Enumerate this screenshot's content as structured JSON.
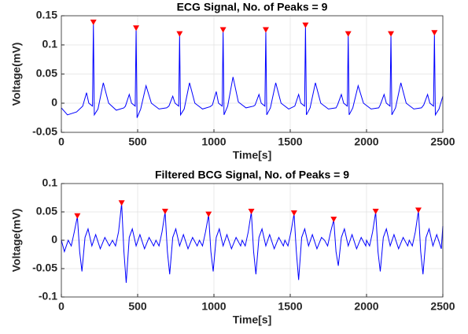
{
  "chart_data": [
    {
      "type": "line",
      "title": "ECG Signal, No. of Peaks = 9",
      "xlabel": "Time[s]",
      "ylabel": "Voltage(mV)",
      "x": [
        0,
        40,
        100,
        140,
        165,
        180,
        204,
        210,
        216,
        240,
        275,
        310,
        360,
        410,
        420,
        445,
        460,
        484,
        490,
        496,
        520,
        555,
        590,
        640,
        690,
        705,
        730,
        745,
        769,
        775,
        781,
        805,
        840,
        875,
        925,
        975,
        990,
        1015,
        1030,
        1054,
        1060,
        1066,
        1090,
        1125,
        1160,
        1210,
        1260,
        1270,
        1295,
        1310,
        1334,
        1340,
        1346,
        1370,
        1405,
        1440,
        1490,
        1530,
        1555,
        1570,
        1594,
        1600,
        1606,
        1630,
        1665,
        1700,
        1750,
        1800,
        1810,
        1835,
        1850,
        1874,
        1880,
        1886,
        1910,
        1945,
        1980,
        2030,
        2080,
        2090,
        2115,
        2130,
        2154,
        2160,
        2166,
        2190,
        2225,
        2260,
        2310,
        2360,
        2375,
        2400,
        2415,
        2439,
        2445,
        2451,
        2475,
        2500
      ],
      "series": [
        {
          "color": "#0000ff",
          "values": [
            -0.008,
            -0.02,
            -0.015,
            -0.005,
            0.018,
            0.0,
            -0.005,
            0.138,
            -0.02,
            -0.01,
            0.035,
            0.0,
            -0.012,
            -0.008,
            -0.005,
            0.015,
            0.0,
            -0.005,
            0.128,
            -0.025,
            -0.01,
            0.03,
            0.0,
            -0.01,
            -0.008,
            -0.005,
            0.012,
            0.0,
            -0.005,
            0.118,
            -0.02,
            -0.01,
            0.035,
            0.0,
            -0.01,
            -0.006,
            -0.003,
            0.02,
            0.0,
            -0.005,
            0.125,
            -0.02,
            -0.005,
            0.045,
            0.002,
            -0.008,
            -0.005,
            -0.003,
            0.015,
            0.0,
            -0.005,
            0.125,
            -0.02,
            -0.008,
            0.035,
            0.0,
            -0.01,
            -0.005,
            0.015,
            0.0,
            -0.005,
            0.133,
            -0.02,
            -0.008,
            0.035,
            0.0,
            -0.01,
            -0.008,
            -0.003,
            0.015,
            0.0,
            -0.005,
            0.118,
            -0.02,
            -0.008,
            0.03,
            0.0,
            -0.01,
            -0.008,
            -0.003,
            0.015,
            0.0,
            -0.005,
            0.118,
            -0.02,
            -0.008,
            0.035,
            0.0,
            -0.01,
            -0.008,
            -0.003,
            0.015,
            0.0,
            -0.005,
            0.12,
            -0.02,
            -0.01,
            0.012
          ]
        }
      ],
      "peaks": {
        "color": "#ff0000",
        "x": [
          210,
          490,
          775,
          1060,
          1340,
          1600,
          1880,
          2160,
          2445
        ],
        "values": [
          0.138,
          0.128,
          0.118,
          0.125,
          0.125,
          0.133,
          0.118,
          0.118,
          0.12
        ]
      },
      "xlim": [
        0,
        2500
      ],
      "ylim": [
        -0.05,
        0.15
      ],
      "xticks": [
        0,
        500,
        1000,
        1500,
        2000,
        2500
      ],
      "yticks": [
        -0.05,
        0,
        0.05,
        0.1,
        0.15
      ],
      "grid": true
    },
    {
      "type": "line",
      "title": "Filtered BCG Signal, No. of Peaks = 9",
      "xlabel": "Time[s]",
      "ylabel": "Voltage(mV)",
      "x": [
        0,
        20,
        45,
        65,
        85,
        105,
        120,
        135,
        155,
        175,
        200,
        225,
        255,
        285,
        315,
        335,
        355,
        375,
        395,
        410,
        425,
        445,
        465,
        490,
        515,
        545,
        575,
        605,
        620,
        640,
        660,
        680,
        695,
        710,
        730,
        750,
        775,
        800,
        830,
        860,
        890,
        905,
        925,
        945,
        965,
        980,
        995,
        1015,
        1035,
        1060,
        1085,
        1115,
        1145,
        1175,
        1185,
        1205,
        1225,
        1245,
        1260,
        1275,
        1295,
        1315,
        1340,
        1365,
        1395,
        1425,
        1455,
        1465,
        1485,
        1505,
        1525,
        1540,
        1555,
        1575,
        1595,
        1620,
        1645,
        1675,
        1705,
        1725,
        1745,
        1765,
        1785,
        1800,
        1815,
        1835,
        1855,
        1880,
        1905,
        1935,
        1965,
        1995,
        2000,
        2020,
        2040,
        2060,
        2075,
        2090,
        2110,
        2130,
        2155,
        2180,
        2210,
        2240,
        2270,
        2280,
        2300,
        2320,
        2340,
        2355,
        2370,
        2390,
        2410,
        2435,
        2460,
        2490,
        2500
      ],
      "series": [
        {
          "color": "#0000ff",
          "values": [
            0.0,
            -0.02,
            0.0,
            -0.01,
            0.015,
            0.042,
            -0.02,
            -0.055,
            0.005,
            0.02,
            -0.01,
            0.01,
            -0.015,
            0.005,
            -0.01,
            0.0,
            -0.01,
            0.015,
            0.065,
            -0.02,
            -0.075,
            0.005,
            0.02,
            -0.01,
            0.01,
            -0.015,
            0.005,
            -0.01,
            0.0,
            -0.01,
            0.015,
            0.05,
            -0.02,
            -0.06,
            0.005,
            0.02,
            -0.01,
            0.01,
            -0.015,
            0.005,
            -0.01,
            0.0,
            -0.01,
            0.015,
            0.045,
            -0.02,
            -0.055,
            0.005,
            0.02,
            -0.01,
            0.01,
            -0.015,
            0.005,
            -0.01,
            0.0,
            -0.01,
            0.015,
            0.05,
            -0.02,
            -0.06,
            0.005,
            0.02,
            -0.01,
            0.01,
            -0.015,
            0.005,
            -0.01,
            0.0,
            -0.01,
            0.015,
            0.047,
            -0.02,
            -0.07,
            0.005,
            0.02,
            -0.01,
            0.01,
            -0.015,
            0.005,
            0.0,
            -0.01,
            0.015,
            0.036,
            -0.02,
            -0.045,
            0.005,
            0.02,
            -0.01,
            0.01,
            -0.015,
            0.005,
            -0.01,
            0.0,
            -0.01,
            0.015,
            0.05,
            -0.02,
            -0.055,
            0.005,
            0.02,
            -0.01,
            0.01,
            -0.015,
            0.005,
            -0.01,
            0.0,
            -0.01,
            0.015,
            0.052,
            -0.02,
            -0.06,
            0.005,
            0.02,
            -0.01,
            0.01,
            -0.015,
            0.025
          ]
        }
      ],
      "peaks": {
        "color": "#ff0000",
        "x": [
          105,
          395,
          680,
          965,
          1245,
          1525,
          1785,
          2060,
          2340
        ],
        "values": [
          0.042,
          0.065,
          0.05,
          0.045,
          0.05,
          0.047,
          0.036,
          0.05,
          0.052
        ]
      },
      "xlim": [
        0,
        2500
      ],
      "ylim": [
        -0.1,
        0.1
      ],
      "xticks": [
        0,
        500,
        1000,
        1500,
        2000,
        2500
      ],
      "yticks": [
        -0.1,
        -0.05,
        0,
        0.05,
        0.1
      ],
      "grid": true
    }
  ]
}
